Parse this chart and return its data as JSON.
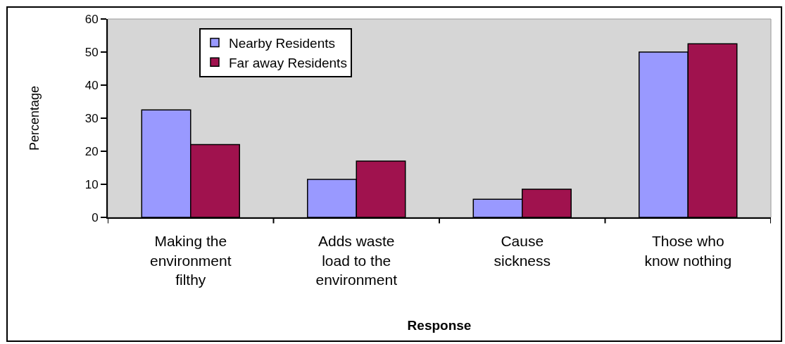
{
  "chart_data": {
    "type": "bar",
    "xlabel": "Response",
    "ylabel": "Percentage",
    "categories": [
      "Making the environment filthy",
      "Adds waste load to the environment",
      "Cause sickness",
      "Those who know nothing"
    ],
    "series": [
      {
        "name": "Nearby Residents",
        "color": "#9999ff",
        "values": [
          32.5,
          11.5,
          5.5,
          50
        ]
      },
      {
        "name": "Far away Residents",
        "color": "#a0124e",
        "values": [
          22,
          17,
          8.5,
          52.5
        ]
      }
    ],
    "ylim": [
      0,
      60
    ],
    "yticks": [
      0,
      10,
      20,
      30,
      40,
      50,
      60
    ],
    "grid": false,
    "legend": "top left"
  }
}
